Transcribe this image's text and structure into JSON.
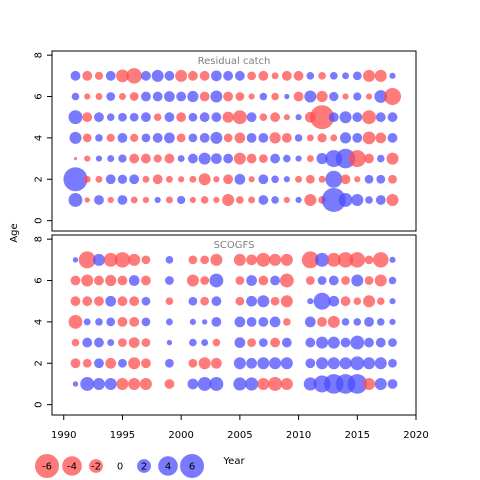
{
  "chart_data": [
    {
      "type": "scatter",
      "title": "Residual catch",
      "xlabel": "Year",
      "ylabel": "Age",
      "xlim": [
        1989,
        2020
      ],
      "ylim": [
        -0.5,
        8.2
      ],
      "yticks": [
        0,
        2,
        4,
        6,
        8
      ],
      "grid": false,
      "colors": {
        "negative": "#ff4d4d",
        "positive": "#4d4dff"
      },
      "ages": [
        1,
        2,
        3,
        4,
        5,
        6,
        7
      ],
      "years": [
        1991,
        1992,
        1993,
        1994,
        1995,
        1996,
        1997,
        1998,
        1999,
        2000,
        2001,
        2002,
        2003,
        2004,
        2005,
        2006,
        2007,
        2008,
        2009,
        2010,
        2011,
        2012,
        2013,
        2014,
        2015,
        2016,
        2017,
        2018
      ],
      "residuals": {
        "1": [
          2.0,
          -0.3,
          1.0,
          -0.4,
          1.0,
          -0.5,
          -0.4,
          0.4,
          -0.5,
          0.7,
          -0.4,
          -0.6,
          -0.4,
          -1.5,
          -0.6,
          -0.5,
          1.0,
          0.6,
          -0.4,
          0.4,
          -1.5,
          -0.6,
          6.0,
          2.0,
          1.5,
          0.6,
          1.0,
          -1.5
        ],
        "2": [
          6.0,
          -0.5,
          -0.5,
          1.0,
          0.9,
          1.0,
          -0.5,
          -1.0,
          -0.5,
          -0.4,
          -0.5,
          -1.5,
          -0.4,
          -1.0,
          1.2,
          -0.4,
          1.0,
          0.6,
          0.4,
          -0.5,
          -0.8,
          -0.5,
          3.0,
          -1.0,
          -0.4,
          0.8,
          0.8,
          -0.8
        ],
        "3": [
          -0.1,
          -0.4,
          0.4,
          0.5,
          0.7,
          -1.0,
          -1.0,
          -0.7,
          -1.0,
          0.5,
          1.0,
          1.5,
          1.2,
          1.0,
          -1.5,
          -1.0,
          -0.8,
          1.0,
          0.6,
          0.4,
          -0.5,
          1.3,
          3.0,
          4.0,
          -3.0,
          -1.0,
          0.6,
          -1.5
        ],
        "4": [
          1.5,
          -0.8,
          0.6,
          -0.7,
          1.0,
          -0.7,
          0.8,
          1.0,
          1.2,
          -0.8,
          0.8,
          1.0,
          1.5,
          -0.8,
          -1.2,
          1.0,
          1.0,
          -1.3,
          -1.0,
          0.6,
          -0.5,
          -0.9,
          -0.5,
          1.3,
          1.0,
          -1.7,
          -1.2,
          1.0
        ],
        "5": [
          2.0,
          -1.0,
          1.0,
          0.6,
          0.8,
          0.8,
          1.0,
          -0.6,
          1.0,
          -1.0,
          0.8,
          1.0,
          1.0,
          -1.3,
          -2.0,
          1.0,
          -0.6,
          -1.0,
          -0.4,
          0.4,
          -1.2,
          -6.0,
          1.0,
          1.5,
          1.0,
          -2.0,
          1.0,
          1.0
        ],
        "6": [
          0.6,
          -0.4,
          -0.5,
          0.8,
          -0.5,
          -0.8,
          1.0,
          1.0,
          1.2,
          1.0,
          1.3,
          -1.0,
          1.5,
          -1.0,
          -0.8,
          -0.4,
          0.6,
          -0.6,
          0.3,
          -1.0,
          1.5,
          -1.3,
          0.9,
          -0.4,
          0.7,
          -0.4,
          1.7,
          -3.0
        ],
        "7": [
          1.0,
          -1.0,
          -0.7,
          1.0,
          -1.7,
          -2.5,
          1.0,
          1.5,
          1.0,
          -1.5,
          -1.0,
          -1.0,
          1.2,
          1.0,
          1.0,
          -0.8,
          -1.0,
          -0.5,
          -1.0,
          -1.0,
          0.6,
          -0.6,
          0.6,
          0.5,
          0.8,
          -1.5,
          -1.5,
          0.4
        ]
      }
    },
    {
      "type": "scatter",
      "title": "SCOGFS",
      "xlabel": "Year",
      "ylabel": "Age",
      "xlim": [
        1989,
        2020
      ],
      "ylim": [
        -0.5,
        8.2
      ],
      "xticks": [
        1990,
        1995,
        2000,
        2005,
        2010,
        2015,
        2020
      ],
      "yticks": [
        0,
        2,
        4,
        6,
        8
      ],
      "grid": false,
      "colors": {
        "negative": "#ff4d4d",
        "positive": "#4d4dff"
      },
      "ages": [
        1,
        2,
        3,
        4,
        5,
        6,
        7
      ],
      "years": [
        1991,
        1992,
        1993,
        1994,
        1995,
        1996,
        1997,
        1999,
        2001,
        2002,
        2003,
        2005,
        2006,
        2007,
        2008,
        2009,
        2011,
        2012,
        2013,
        2014,
        2015,
        2016,
        2017,
        2018
      ],
      "residuals": {
        "1": [
          0.3,
          2.0,
          1.5,
          1.5,
          -1.5,
          -1.5,
          -1.5,
          -1.0,
          1.2,
          2.0,
          2.0,
          1.8,
          1.8,
          -1.5,
          -2.0,
          -1.5,
          1.8,
          3.0,
          4.0,
          4.0,
          4.0,
          -1.5,
          1.5,
          1.0
        ],
        "2": [
          -1.0,
          -0.8,
          1.0,
          -1.2,
          0.8,
          -1.5,
          -1.0,
          0.8,
          -0.8,
          -1.5,
          -1.2,
          1.5,
          1.2,
          1.5,
          1.5,
          1.5,
          1.0,
          1.5,
          1.5,
          1.5,
          2.0,
          1.5,
          1.5,
          0.8
        ],
        "3": [
          -0.6,
          1.0,
          1.0,
          0.5,
          -0.8,
          -1.2,
          -0.8,
          0.3,
          0.6,
          0.5,
          -0.6,
          1.2,
          -0.8,
          0.8,
          -1.0,
          1.0,
          1.0,
          1.5,
          1.5,
          1.0,
          2.0,
          1.0,
          1.0,
          0.8
        ],
        "4": [
          -2.0,
          0.5,
          0.6,
          0.8,
          -1.0,
          -1.0,
          0.8,
          0.5,
          0.4,
          0.3,
          1.0,
          1.2,
          1.0,
          1.0,
          1.2,
          -0.6,
          1.2,
          -1.0,
          -1.5,
          0.6,
          0.6,
          1.0,
          0.6,
          0.4
        ],
        "5": [
          -1.0,
          -1.0,
          -1.0,
          1.2,
          -1.0,
          -1.0,
          0.8,
          -0.6,
          0.8,
          -0.8,
          1.0,
          -0.8,
          1.2,
          1.5,
          -0.8,
          -1.5,
          0.4,
          3.0,
          1.2,
          -1.0,
          -0.6,
          -1.5,
          -0.6,
          0.4
        ],
        "6": [
          -1.0,
          -1.5,
          -1.0,
          -1.3,
          -1.0,
          1.2,
          -1.0,
          0.8,
          -1.5,
          -0.8,
          2.0,
          -0.8,
          1.2,
          -1.0,
          1.0,
          -2.0,
          -0.8,
          0.8,
          1.0,
          -0.8,
          1.5,
          -0.8,
          -1.5,
          0.6
        ],
        "7": [
          0.3,
          -3.0,
          1.5,
          -2.0,
          -2.5,
          -1.5,
          -0.8,
          0.6,
          -0.8,
          -0.8,
          -1.5,
          -1.5,
          -1.2,
          -2.0,
          -1.5,
          -1.5,
          -3.0,
          2.0,
          -2.0,
          -2.5,
          -2.5,
          -0.8,
          -2.5,
          0.4
        ]
      }
    }
  ],
  "legend": {
    "placement": "bottom-left",
    "entries": [
      {
        "label": "-6",
        "value": -6
      },
      {
        "label": "-4",
        "value": -4
      },
      {
        "label": "-2",
        "value": -2
      },
      {
        "label": "0",
        "value": 0
      },
      {
        "label": "2",
        "value": 2
      },
      {
        "label": "4",
        "value": 4
      },
      {
        "label": "6",
        "value": 6
      }
    ]
  }
}
